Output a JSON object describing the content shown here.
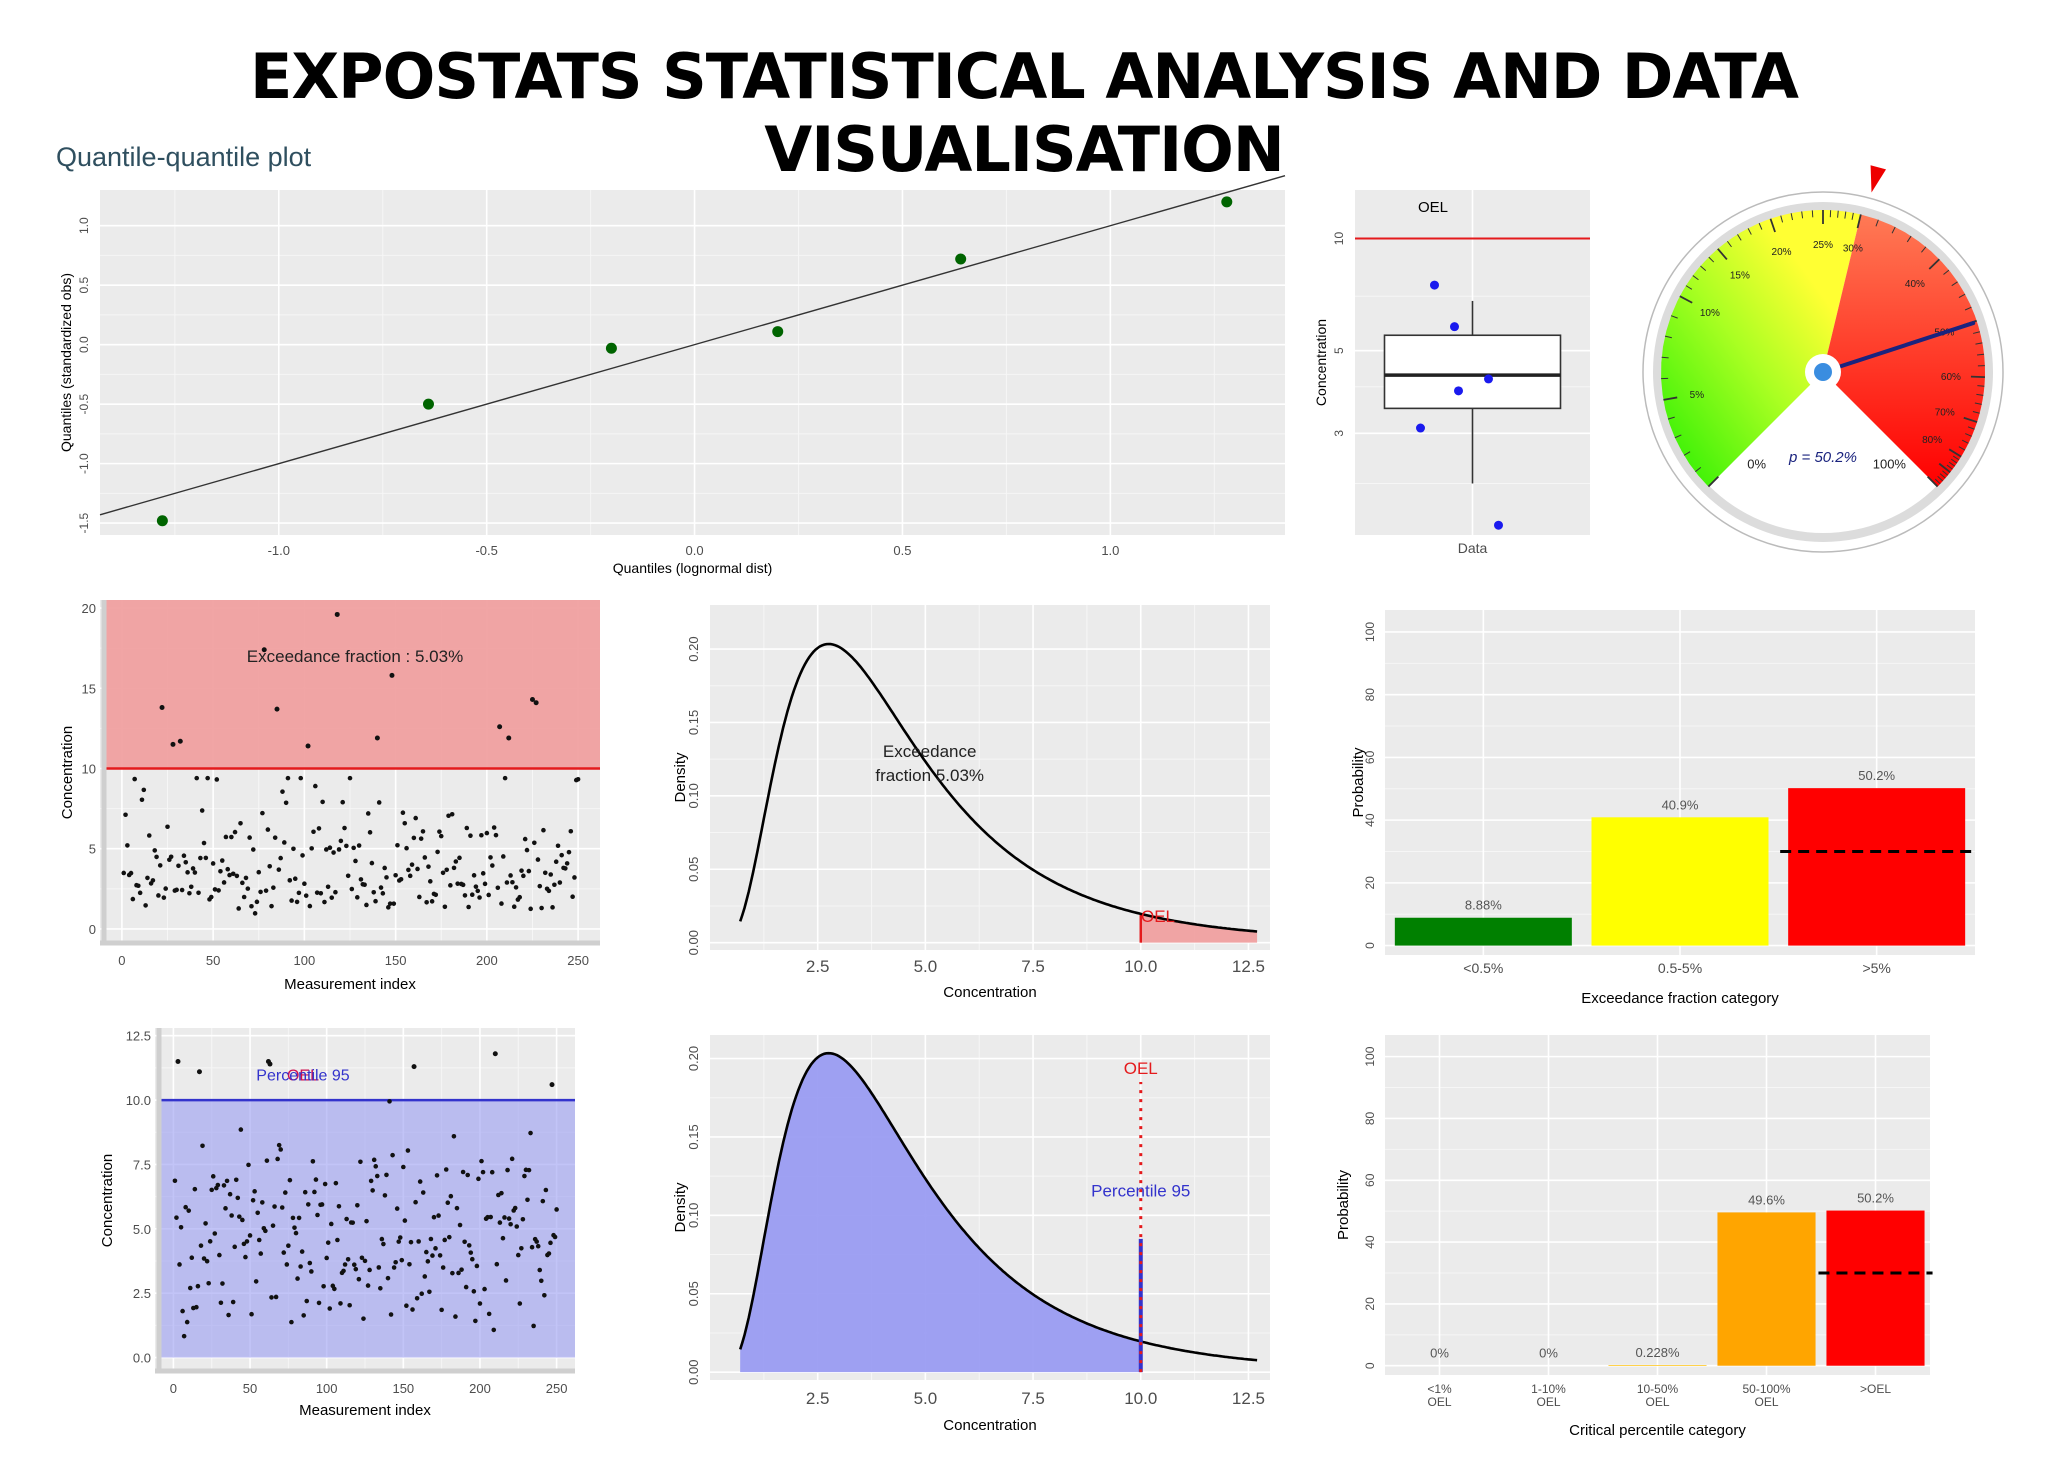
{
  "title": "EXPOSTATS STATISTICAL ANALYSIS AND DATA VISUALISATION",
  "qq_caption": "Quantile-quantile plot",
  "colors": {
    "panel_bg": "#ebebeb",
    "grid": "#ffffff",
    "oel_red": "#e41a1c",
    "exceed_fill": "#f0a0a0",
    "percentile_blue": "#3333cc",
    "percentile_fill": "#9a9cf2"
  },
  "chart_data": [
    {
      "id": "qq",
      "type": "scatter",
      "title": "Quantile-quantile plot",
      "xlabel": "Quantiles (lognormal dist)",
      "ylabel": "Quantiles (standardized obs)",
      "xlim": [
        -1.43,
        1.42
      ],
      "ylim": [
        -1.6,
        1.3
      ],
      "xticks": [
        "-1.0",
        "-0.5",
        "0.0",
        "0.5",
        "1.0"
      ],
      "yticks": [
        "-1.5",
        "-1.0",
        "-0.5",
        "0.0",
        "0.5",
        "1.0"
      ],
      "points": [
        {
          "x": -1.28,
          "y": -1.48
        },
        {
          "x": -0.64,
          "y": -0.5
        },
        {
          "x": -0.2,
          "y": -0.03
        },
        {
          "x": 0.2,
          "y": 0.11
        },
        {
          "x": 0.64,
          "y": 0.72
        },
        {
          "x": 1.28,
          "y": 1.2
        }
      ],
      "reference_line": {
        "intercept": 0,
        "slope": 1
      }
    },
    {
      "id": "boxplot",
      "type": "box",
      "category": "Data",
      "ylabel": "Concentration",
      "log_scale": true,
      "ylim": [
        1.6,
        13.5
      ],
      "yticks": [
        "3",
        "5",
        "10"
      ],
      "oel": 10,
      "oel_label": "OEL",
      "box": {
        "min": 2.2,
        "q1": 3.5,
        "median": 4.3,
        "q3": 5.5,
        "max": 6.8
      },
      "points": [
        1.7,
        3.1,
        3.9,
        4.2,
        5.8,
        7.5
      ]
    },
    {
      "id": "gauge",
      "type": "gauge",
      "value": 50.2,
      "label": "p = 50.2%",
      "tick_labels": [
        "0%",
        "5%",
        "10%",
        "15%",
        "20%",
        "25%",
        "30%",
        "40%",
        "50%",
        "60%",
        "70%",
        "80%",
        "100%"
      ]
    },
    {
      "id": "exceed_scatter",
      "type": "scatter",
      "xlabel": "Measurement index",
      "ylabel": "Concentration",
      "xlim": [
        -12,
        262
      ],
      "ylim": [
        -1,
        20.5
      ],
      "xticks": [
        "0",
        "50",
        "100",
        "150",
        "200",
        "250"
      ],
      "yticks": [
        "0",
        "5",
        "10",
        "15",
        "20"
      ],
      "oel": 10,
      "annotation": "Exceedance fraction : 5.03%",
      "n_points": 250,
      "high_points": [
        {
          "x": 22,
          "y": 13.8
        },
        {
          "x": 28,
          "y": 11.5
        },
        {
          "x": 32,
          "y": 11.7
        },
        {
          "x": 78,
          "y": 17.4
        },
        {
          "x": 85,
          "y": 13.7
        },
        {
          "x": 102,
          "y": 11.4
        },
        {
          "x": 118,
          "y": 19.6
        },
        {
          "x": 140,
          "y": 11.9
        },
        {
          "x": 148,
          "y": 15.8
        },
        {
          "x": 207,
          "y": 12.6
        },
        {
          "x": 212,
          "y": 11.9
        },
        {
          "x": 225,
          "y": 14.3
        },
        {
          "x": 227,
          "y": 14.1
        }
      ]
    },
    {
      "id": "density_exceed",
      "type": "area",
      "distribution": "lognormal",
      "params": {
        "median": 3.93,
        "sd_log": 0.596
      },
      "xlabel": "Concentration",
      "ylabel": "Density",
      "xlim": [
        0.0,
        13.0
      ],
      "ylim": [
        -0.005,
        0.23
      ],
      "xticks": [
        "2.5",
        "5.0",
        "7.5",
        "10.0",
        "12.5"
      ],
      "yticks": [
        "0.00",
        "0.05",
        "0.10",
        "0.15",
        "0.20"
      ],
      "x_range": [
        0.7,
        12.7
      ],
      "oel": 10,
      "oel_label": "OEL",
      "annotation": [
        "Exceedance",
        "fraction 5.03%"
      ]
    },
    {
      "id": "ef_prob",
      "type": "bar",
      "categories": [
        "<0.5%",
        "0.5-5%",
        ">5%"
      ],
      "values": [
        8.88,
        40.9,
        50.2
      ],
      "value_labels": [
        "8.88%",
        "40.9%",
        "50.2%"
      ],
      "bar_colors": [
        "#008000",
        "#ffff00",
        "#ff0000"
      ],
      "xlabel": "Exceedance fraction category",
      "ylabel": "Probability",
      "ylim": [
        -3,
        107
      ],
      "yticks": [
        "0",
        "20",
        "40",
        "60",
        "80",
        "100"
      ],
      "threshold": 30
    },
    {
      "id": "p95_scatter",
      "type": "scatter",
      "xlabel": "Measurement index",
      "ylabel": "Concentration",
      "xlim": [
        -12,
        262
      ],
      "ylim": [
        -0.6,
        12.8
      ],
      "xticks": [
        "0",
        "50",
        "100",
        "150",
        "200",
        "250"
      ],
      "yticks": [
        "0.0",
        "2.5",
        "5.0",
        "7.5",
        "10.0",
        "12.5"
      ],
      "percentile_95": 10,
      "percentile_label": "Percentile 95",
      "oel_label": "OEL",
      "n_points": 250,
      "high_points": [
        {
          "x": 3,
          "y": 11.5
        },
        {
          "x": 17,
          "y": 11.1
        },
        {
          "x": 62,
          "y": 11.5
        },
        {
          "x": 63,
          "y": 11.4
        },
        {
          "x": 157,
          "y": 11.3
        },
        {
          "x": 210,
          "y": 11.8
        },
        {
          "x": 247,
          "y": 10.6
        }
      ]
    },
    {
      "id": "density_p95",
      "type": "area",
      "distribution": "lognormal",
      "params": {
        "median": 3.93,
        "sd_log": 0.596
      },
      "xlabel": "Concentration",
      "ylabel": "Density",
      "xlim": [
        0.0,
        13.0
      ],
      "ylim": [
        -0.005,
        0.215
      ],
      "xticks": [
        "2.5",
        "5.0",
        "7.5",
        "10.0",
        "12.5"
      ],
      "yticks": [
        "0.00",
        "0.05",
        "0.10",
        "0.15",
        "0.20"
      ],
      "x_range": [
        0.7,
        12.7
      ],
      "oel": 10,
      "oel_label": "OEL",
      "percentile_95": 10,
      "percentile_label": "Percentile 95",
      "percentile_line_top": 0.085
    },
    {
      "id": "cp_prob",
      "type": "bar",
      "categories": [
        [
          "<1%",
          "OEL"
        ],
        [
          "1-10%",
          "OEL"
        ],
        [
          "10-50%",
          "OEL"
        ],
        [
          "50-100%",
          "OEL"
        ],
        [
          ">OEL"
        ]
      ],
      "values": [
        0,
        0,
        0.228,
        49.6,
        50.2
      ],
      "value_labels": [
        "0%",
        "0%",
        "0.228%",
        "49.6%",
        "50.2%"
      ],
      "bar_colors": [
        "#008000",
        "#ffff00",
        "#ffc000",
        "#ffa500",
        "#ff0000"
      ],
      "xlabel": "Critical percentile category",
      "ylabel": "Probability",
      "ylim": [
        -3,
        107
      ],
      "yticks": [
        "0",
        "20",
        "40",
        "60",
        "80",
        "100"
      ],
      "threshold": 30
    }
  ]
}
